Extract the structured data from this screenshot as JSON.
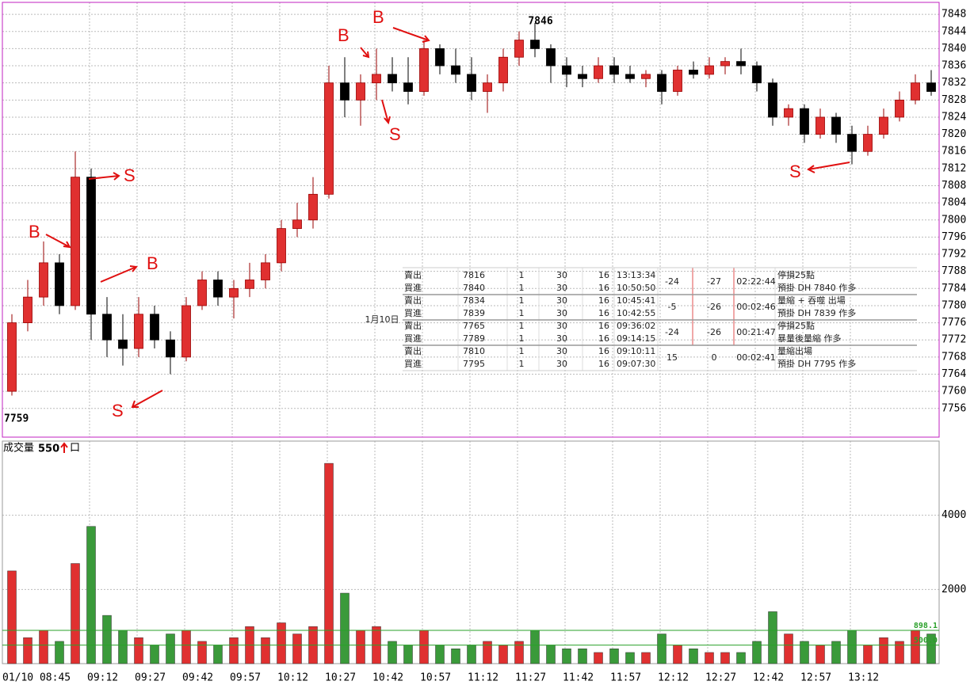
{
  "chart_data": {
    "type": "candlestick",
    "x": [
      0,
      5,
      10,
      15,
      20,
      25,
      30,
      35,
      40,
      45,
      50,
      55,
      60,
      65,
      70,
      75,
      80,
      85,
      90,
      95,
      100,
      105,
      110,
      115,
      120,
      125,
      130,
      135,
      140,
      145,
      150,
      155,
      160,
      165,
      170,
      175,
      180,
      185,
      190,
      195,
      200,
      205,
      210,
      215,
      220,
      225,
      230,
      235,
      240,
      245,
      250,
      255,
      260,
      265,
      270,
      275,
      280,
      285,
      290
    ],
    "open": [
      7760,
      7776,
      7782,
      7790,
      7780,
      7810,
      7778,
      7772,
      7770,
      7778,
      7772,
      7768,
      7780,
      7786,
      7782,
      7784,
      7786,
      7790,
      7798,
      7800,
      7806,
      7832,
      7828,
      7832,
      7834,
      7832,
      7830,
      7840,
      7836,
      7834,
      7830,
      7832,
      7838,
      7842,
      7840,
      7836,
      7834,
      7833,
      7836,
      7834,
      7833,
      7834,
      7830,
      7835,
      7834,
      7836,
      7837,
      7836,
      7832,
      7824,
      7826,
      7820,
      7824,
      7820,
      7816,
      7820,
      7824,
      7828,
      7832
    ],
    "high": [
      7778,
      7786,
      7795,
      7792,
      7816,
      7812,
      7782,
      7778,
      7782,
      7780,
      7774,
      7782,
      7788,
      7788,
      7786,
      7790,
      7792,
      7800,
      7804,
      7810,
      7836,
      7838,
      7834,
      7840,
      7838,
      7838,
      7842,
      7841,
      7840,
      7838,
      7834,
      7840,
      7844,
      7846,
      7841,
      7838,
      7836,
      7838,
      7838,
      7836,
      7835,
      7835,
      7836,
      7837,
      7838,
      7838,
      7840,
      7837,
      7833,
      7827,
      7827,
      7826,
      7825,
      7822,
      7822,
      7826,
      7830,
      7834,
      7835
    ],
    "low": [
      7759,
      7774,
      7780,
      7778,
      7779,
      7772,
      7768,
      7766,
      7768,
      7770,
      7764,
      7767,
      7779,
      7780,
      7777,
      7782,
      7784,
      7788,
      7796,
      7798,
      7805,
      7824,
      7822,
      7828,
      7830,
      7827,
      7829,
      7834,
      7832,
      7828,
      7825,
      7830,
      7836,
      7838,
      7832,
      7831,
      7831,
      7832,
      7832,
      7832,
      7831,
      7827,
      7829,
      7833,
      7833,
      7834,
      7834,
      7830,
      7822,
      7822,
      7818,
      7819,
      7818,
      7813,
      7815,
      7819,
      7823,
      7827,
      7829
    ],
    "close": [
      7776,
      7782,
      7790,
      7780,
      7810,
      7778,
      7772,
      7770,
      7778,
      7772,
      7768,
      7780,
      7786,
      7782,
      7784,
      7786,
      7790,
      7798,
      7800,
      7806,
      7832,
      7828,
      7832,
      7834,
      7832,
      7830,
      7840,
      7836,
      7834,
      7830,
      7832,
      7838,
      7842,
      7840,
      7836,
      7834,
      7833,
      7836,
      7834,
      7833,
      7834,
      7830,
      7835,
      7834,
      7836,
      7837,
      7836,
      7832,
      7824,
      7826,
      7820,
      7824,
      7820,
      7816,
      7820,
      7824,
      7828,
      7832,
      7830
    ],
    "volume": [
      2500,
      700,
      900,
      600,
      2700,
      3700,
      1300,
      900,
      700,
      500,
      800,
      900,
      600,
      500,
      700,
      1000,
      700,
      1100,
      800,
      1000,
      5400,
      1900,
      900,
      1000,
      600,
      500,
      900,
      500,
      400,
      500,
      600,
      500,
      600,
      900,
      500,
      400,
      400,
      300,
      400,
      300,
      300,
      800,
      500,
      400,
      300,
      300,
      300,
      600,
      1400,
      800,
      600,
      500,
      600,
      900,
      500,
      700,
      600,
      900,
      800
    ],
    "up_color": "#e03030",
    "down_color": "#000000",
    "up_volume_color": "#e03030",
    "down_volume_color": "#3a9a3a",
    "xlim": [
      -1.25,
      295
    ],
    "xticks": [
      {
        "value": 0,
        "label": "01/10 08:45"
      },
      {
        "value": 27,
        "label": "09:12"
      },
      {
        "value": 42,
        "label": "09:27"
      },
      {
        "value": 57,
        "label": "09:42"
      },
      {
        "value": 72,
        "label": "09:57"
      },
      {
        "value": 87,
        "label": "10:12"
      },
      {
        "value": 102,
        "label": "10:27"
      },
      {
        "value": 117,
        "label": "10:42"
      },
      {
        "value": 132,
        "label": "10:57"
      },
      {
        "value": 147,
        "label": "11:12"
      },
      {
        "value": 162,
        "label": "11:27"
      },
      {
        "value": 177,
        "label": "11:42"
      },
      {
        "value": 192,
        "label": "11:57"
      },
      {
        "value": 207,
        "label": "12:12"
      },
      {
        "value": 222,
        "label": "12:27"
      },
      {
        "value": 237,
        "label": "12:42"
      },
      {
        "value": 252,
        "label": "12:57"
      },
      {
        "value": 267,
        "label": "13:12"
      }
    ],
    "ylim": [
      7749.3,
      7850.8
    ],
    "yticks": [
      7756,
      7760,
      7764,
      7768,
      7772,
      7776,
      7780,
      7784,
      7788,
      7792,
      7796,
      7800,
      7804,
      7808,
      7812,
      7816,
      7820,
      7824,
      7828,
      7832,
      7836,
      7840,
      7844,
      7848
    ],
    "volume_ylim": [
      0,
      6000
    ],
    "volume_yticks": [
      2000,
      4000
    ],
    "ref_lines": [
      {
        "value": 898.1,
        "label": "898.1"
      },
      {
        "value": 500,
        "label": "500.0"
      }
    ],
    "ref_color": "#2aa02a",
    "grid": true,
    "low_price": 7759,
    "high_price": 7846,
    "volume_title": "成交量",
    "last_volume": 550,
    "volume_unit": "口",
    "annotations": [
      "B",
      "S",
      "B",
      "S",
      "B",
      "B",
      "S",
      "S"
    ]
  },
  "table": {
    "date": "1月10日",
    "groups": [
      {
        "rows": [
          [
            "賣出",
            7816,
            1,
            30,
            16,
            "13:13:34"
          ],
          [
            "買進",
            7840,
            1,
            30,
            16,
            "10:50:50"
          ]
        ],
        "diff": -24,
        "net": -27,
        "duration": "02:22:44",
        "notes": [
          "停損25點",
          "預掛 DH 7840 作多"
        ]
      },
      {
        "rows": [
          [
            "賣出",
            7834,
            1,
            30,
            16,
            "10:45:41"
          ],
          [
            "買進",
            7839,
            1,
            30,
            16,
            "10:42:55"
          ]
        ],
        "diff": -5,
        "net": -26,
        "duration": "00:02:46",
        "notes": [
          "量縮 + 吞噬  出場",
          "預掛 DH 7839 作多"
        ]
      },
      {
        "rows": [
          [
            "賣出",
            7765,
            1,
            30,
            16,
            "09:36:02"
          ],
          [
            "買進",
            7789,
            1,
            30,
            16,
            "09:14:15"
          ]
        ],
        "diff": -24,
        "net": -26,
        "duration": "00:21:47",
        "notes": [
          "停損25點",
          "暴量後量縮  作多"
        ]
      },
      {
        "rows": [
          [
            "賣出",
            7810,
            1,
            30,
            16,
            "09:10:11"
          ],
          [
            "買進",
            7795,
            1,
            30,
            16,
            "09:07:30"
          ]
        ],
        "diff": 15,
        "net": 0,
        "duration": "00:02:41",
        "notes": [
          "量縮出場",
          "預掛 DH 7795 作多"
        ]
      }
    ]
  }
}
